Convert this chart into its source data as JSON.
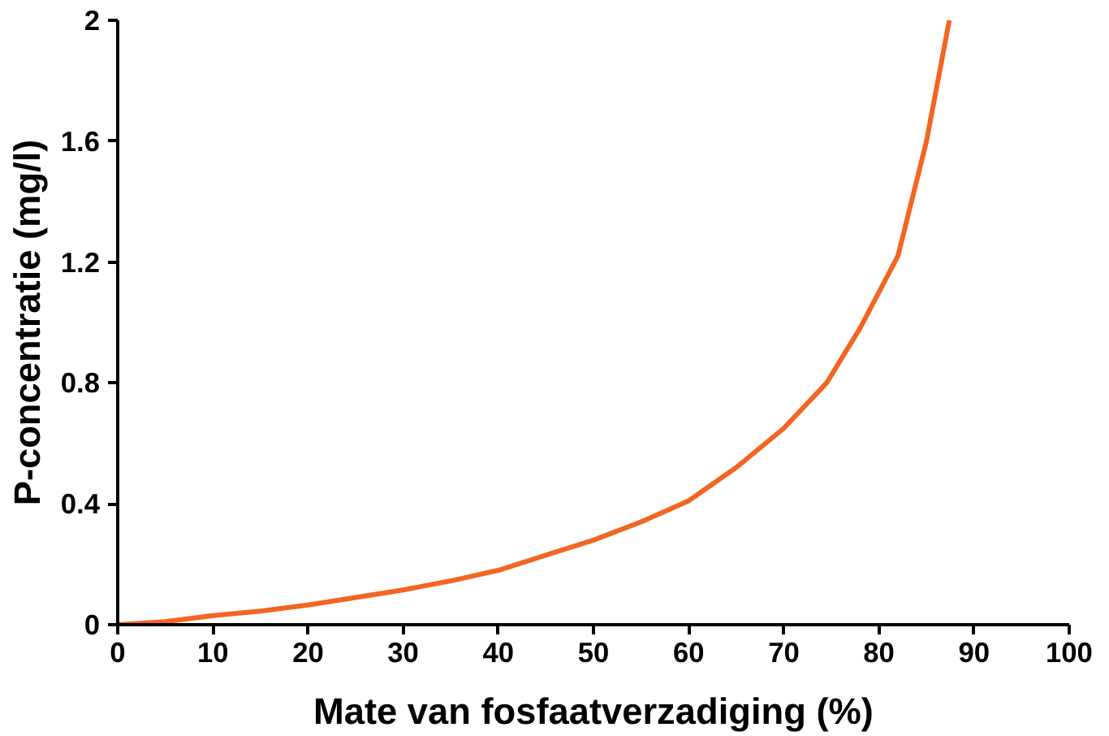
{
  "chart_data": {
    "type": "line",
    "xlabel": "Mate van fosfaatverzadiging (%)",
    "ylabel": "P-concentratie (mg/l)",
    "x": [
      0,
      5,
      10,
      15,
      20,
      25,
      30,
      35,
      40,
      45,
      50,
      55,
      60,
      65,
      70,
      74.5,
      78,
      82,
      85,
      86.5,
      87.4
    ],
    "series": [
      {
        "color": "#f26522",
        "values": [
          0,
          0.01,
          0.03,
          0.045,
          0.065,
          0.09,
          0.115,
          0.145,
          0.18,
          0.23,
          0.28,
          0.34,
          0.41,
          0.52,
          0.65,
          0.8,
          0.98,
          1.22,
          1.6,
          1.85,
          2.0
        ]
      }
    ],
    "xlim": [
      0,
      100
    ],
    "xticks": [
      0,
      10,
      20,
      30,
      40,
      50,
      60,
      70,
      80,
      90,
      100
    ],
    "ylim": [
      0,
      2
    ],
    "yticks": [
      0,
      {
        "value": 0.4,
        "label": "0.4"
      },
      {
        "value": 0.8,
        "label": "0.8"
      },
      {
        "value": 1.2,
        "label": "1.2"
      },
      {
        "value": 1.6,
        "label": "1.6"
      },
      2
    ],
    "marker": "none",
    "line_style": "solid"
  }
}
